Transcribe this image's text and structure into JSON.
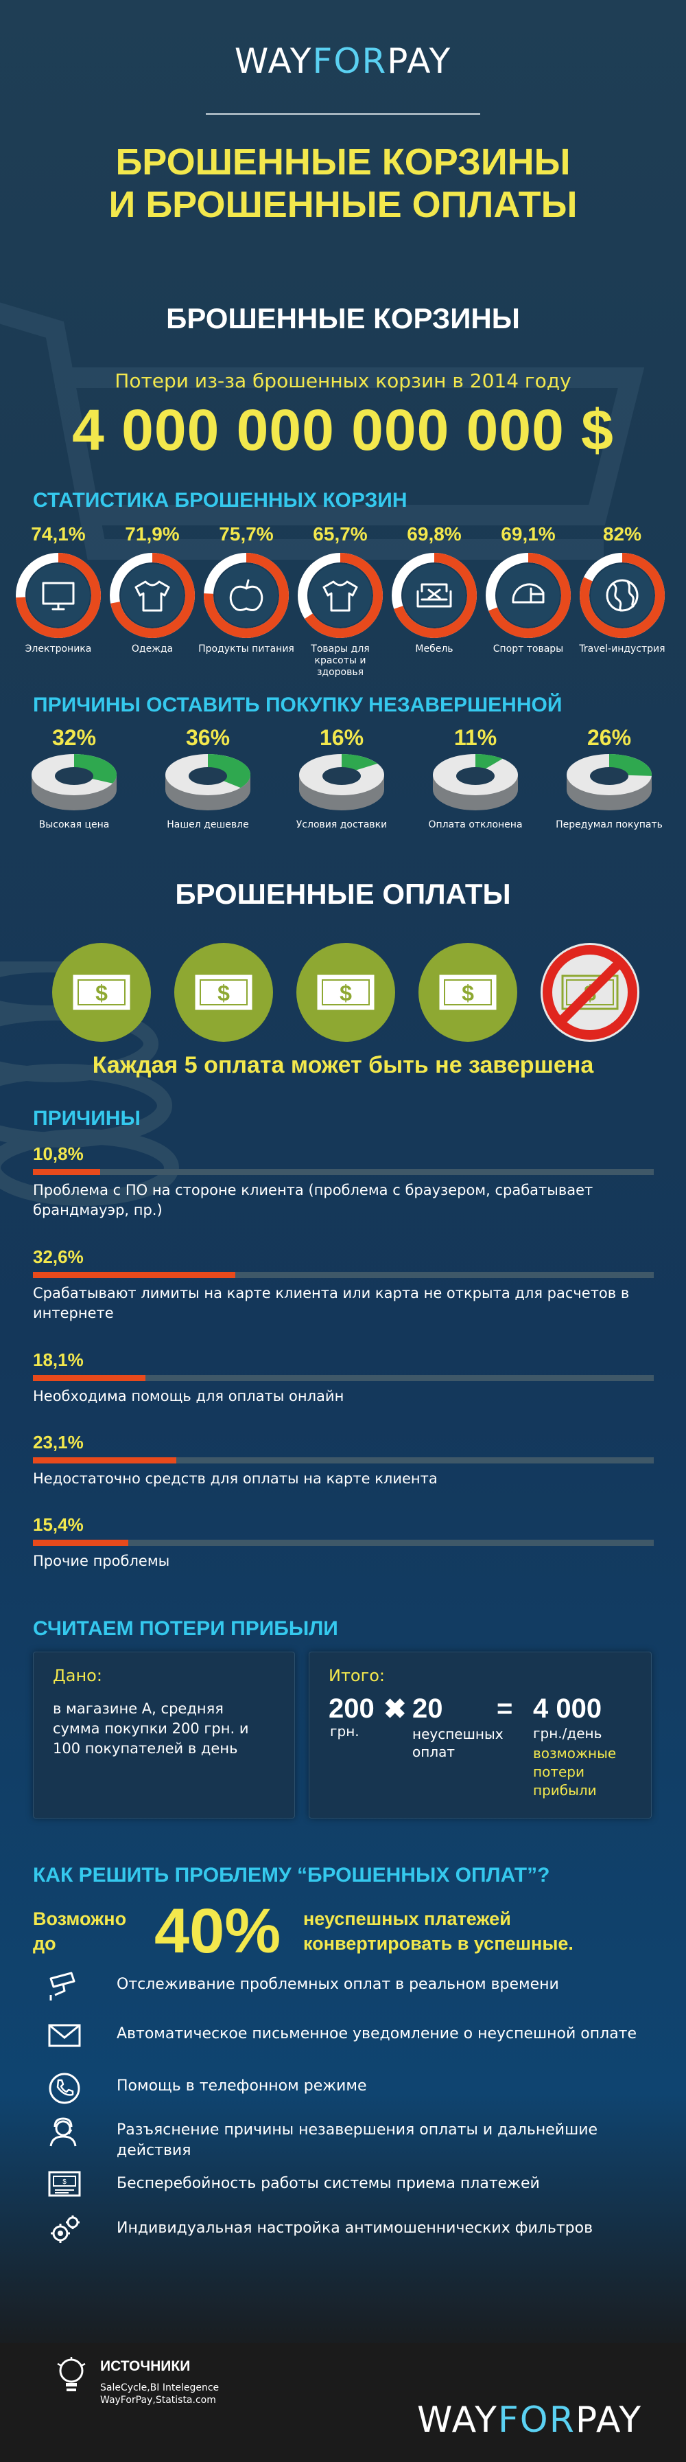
{
  "header": {
    "logo_way": "WAY",
    "logo_for": "FOR",
    "logo_pay": "PAY",
    "title_line1": "БРОШЕННЫЕ КОРЗИНЫ",
    "title_line2": "И БРОШЕННЫЕ ОПЛАТЫ"
  },
  "carts": {
    "section_title": "БРОШЕННЫЕ КОРЗИНЫ",
    "loss_caption": "Потери из-за брошенных корзин в 2014 году",
    "loss_amount": "4 000 000 000 000 $",
    "stats_title": "СТАТИСТИКА БРОШЕННЫХ КОРЗИН",
    "stats": [
      {
        "pct": "74,1%",
        "value": 74.1,
        "label": "Электроника",
        "icon": "monitor-icon"
      },
      {
        "pct": "71,9%",
        "value": 71.9,
        "label": "Одежда",
        "icon": "shirt-icon"
      },
      {
        "pct": "75,7%",
        "value": 75.7,
        "label": "Продукты питания",
        "icon": "apple-icon"
      },
      {
        "pct": "65,7%",
        "value": 65.7,
        "label": "Товары для красоты и здоровья",
        "icon": "shirt-icon"
      },
      {
        "pct": "69,8%",
        "value": 69.8,
        "label": "Мебель",
        "icon": "sofa-icon"
      },
      {
        "pct": "69,1%",
        "value": 69.1,
        "label": "Спорт товары",
        "icon": "helmet-icon"
      },
      {
        "pct": "82%",
        "value": 82,
        "label": "Travel-индустрия",
        "icon": "globe-icon"
      }
    ],
    "reasons_title": "ПРИЧИНЫ ОСТАВИТЬ ПОКУПКУ НЕЗАВЕРШЕННОЙ",
    "reasons": [
      {
        "pct": "32%",
        "value": 32,
        "label": "Высокая цена"
      },
      {
        "pct": "36%",
        "value": 36,
        "label": "Нашел дешевле"
      },
      {
        "pct": "16%",
        "value": 16,
        "label": "Условия доставки"
      },
      {
        "pct": "11%",
        "value": 11,
        "label": "Оплата отклонена"
      },
      {
        "pct": "26%",
        "value": 26,
        "label": "Передумал покупать"
      }
    ]
  },
  "payments": {
    "section_title": "БРОШЕННЫЕ ОПЛАТЫ",
    "tagline": "Каждая 5 оплата может быть не завершена",
    "bill_symbol": "$",
    "reasons_title": "ПРИЧИНЫ",
    "reasons": [
      {
        "pct": "10,8%",
        "value": 10.8,
        "text": "Проблема с ПО на стороне клиента (проблема с браузером, срабатывает брандмауэр, пр.)"
      },
      {
        "pct": "32,6%",
        "value": 32.6,
        "text": "Срабатывают лимиты на карте клиента или карта не открыта для расчетов в интернете"
      },
      {
        "pct": "18,1%",
        "value": 18.1,
        "text": "Необходима помощь для оплаты онлайн"
      },
      {
        "pct": "23,1%",
        "value": 23.1,
        "text": "Недостаточно средств  для оплаты на карте клиента"
      },
      {
        "pct": "15,4%",
        "value": 15.4,
        "text": "Прочие проблемы"
      }
    ]
  },
  "calc": {
    "title": "СЧИТАЕМ ПОТЕРИ ПРИБЫЛИ",
    "given_label": "Дано:",
    "given_text": "в магазине А, средняя сумма покупки 200 грн. и 100 покупателей в день",
    "total_label": "Итого:",
    "a_num": "200",
    "a_unit": "грн.",
    "times": "✖",
    "b_num": "20",
    "b_unit": "неуспешных оплат",
    "equals": "=",
    "result_num": "4 000",
    "result_unit": "грн./день",
    "result_note": "возможные потери прибыли"
  },
  "solution": {
    "title": "КАК РЕШИТЬ ПРОБЛЕМУ “БРОШЕННЫХ ОПЛАТ”?",
    "left_text": "Возможно до",
    "big_pct": "40%",
    "right_text": "неуспешных платежей конвертировать в успешные.",
    "items": [
      {
        "icon": "camera-icon",
        "text": "Отслеживание проблемных оплат в реальном времени"
      },
      {
        "icon": "envelope-icon",
        "text": "Автоматическое письменное уведомление о неуспешной оплате"
      },
      {
        "icon": "phone-icon",
        "text": "Помощь в телефонном режиме"
      },
      {
        "icon": "support-person-icon",
        "text": "Разъяснение причины незавершения  оплаты и дальнейшие действия"
      },
      {
        "icon": "terminal-icon",
        "text": "Бесперебойность работы системы приема платежей"
      },
      {
        "icon": "gears-icon",
        "text": "Индивидуальная настройка антимошеннических фильтров"
      }
    ]
  },
  "footer": {
    "sources_title": "ИСТОЧНИКИ",
    "sources_line1": "SaleCycle,BI Intelegence",
    "sources_line2": "WayForPay,Statista.com",
    "logo_way": "WAY",
    "logo_for": "FOR",
    "logo_pay": "PAY"
  },
  "colors": {
    "accent_yellow": "#f3e84d",
    "accent_cyan": "#35c9ee",
    "ring_red": "#e84a1c",
    "reason_green": "#2fa84f",
    "coin_green": "#8ea832"
  }
}
